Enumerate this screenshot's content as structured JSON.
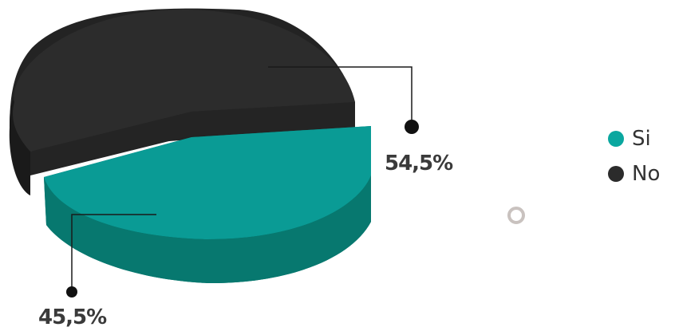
{
  "chart_data": {
    "type": "pie",
    "style": "3d",
    "categories": [
      "Si",
      "No"
    ],
    "values": [
      45.5,
      54.5
    ],
    "data_labels": [
      "45,5%",
      "54,5%"
    ],
    "colors": [
      "#0a9b95",
      "#2b2b2b"
    ],
    "legend": {
      "placement": "right",
      "entries": [
        "Si",
        "No"
      ]
    }
  }
}
